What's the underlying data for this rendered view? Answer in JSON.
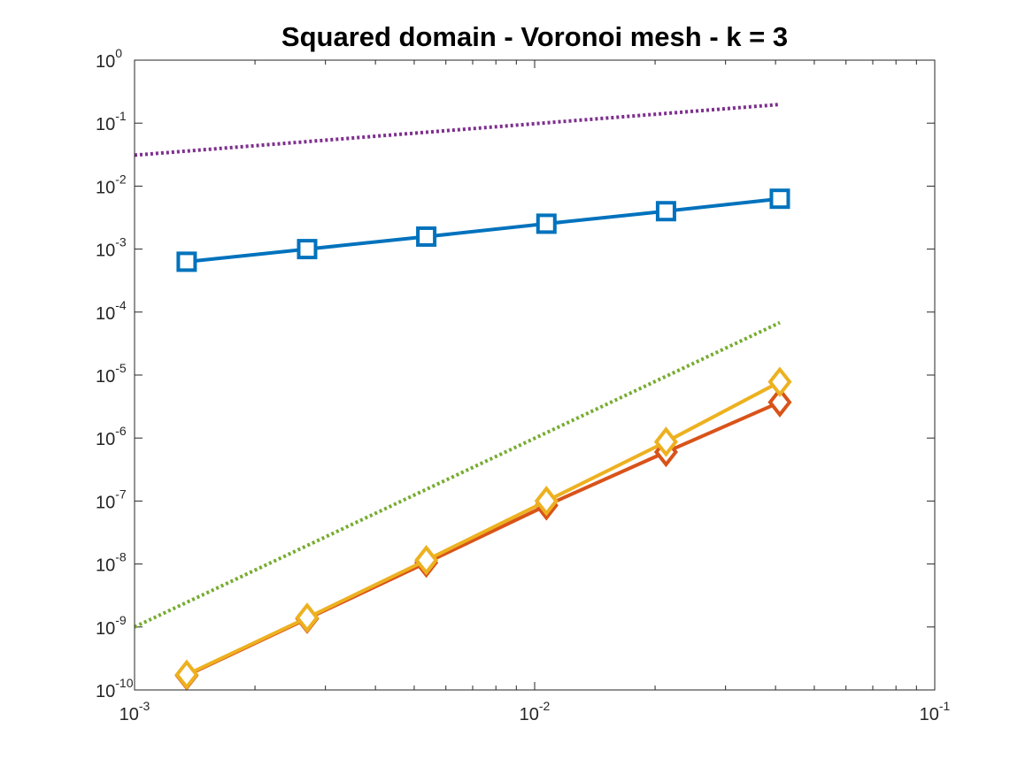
{
  "chart_data": {
    "type": "line",
    "title": "Squared domain - Voronoi mesh - k = 3",
    "xlabel": "",
    "ylabel": "",
    "xscale": "log",
    "yscale": "log",
    "xlim": [
      0.001,
      0.1
    ],
    "ylim": [
      1e-10,
      1
    ],
    "grid": false,
    "box": true,
    "x_ticks": [
      {
        "base": "10",
        "exp": "-3",
        "value": 0.001
      },
      {
        "base": "10",
        "exp": "-2",
        "value": 0.01
      },
      {
        "base": "10",
        "exp": "-1",
        "value": 0.1
      }
    ],
    "y_ticks": [
      {
        "base": "10",
        "exp": "0",
        "value": 1
      },
      {
        "base": "10",
        "exp": "-1",
        "value": 0.1
      },
      {
        "base": "10",
        "exp": "-2",
        "value": 0.01
      },
      {
        "base": "10",
        "exp": "-3",
        "value": 0.001
      },
      {
        "base": "10",
        "exp": "-4",
        "value": 0.0001
      },
      {
        "base": "10",
        "exp": "-5",
        "value": 1e-05
      },
      {
        "base": "10",
        "exp": "-6",
        "value": 1e-06
      },
      {
        "base": "10",
        "exp": "-7",
        "value": 1e-07
      },
      {
        "base": "10",
        "exp": "-8",
        "value": 1e-08
      },
      {
        "base": "10",
        "exp": "-9",
        "value": 1e-09
      },
      {
        "base": "10",
        "exp": "-10",
        "value": 1e-10
      }
    ],
    "series": [
      {
        "color": "#0072BD",
        "marker": "square",
        "line": "solid",
        "x": [
          0.00135,
          0.0027,
          0.00536,
          0.0107,
          0.0213,
          0.041
        ],
        "y": [
          0.00063,
          0.001,
          0.00158,
          0.00253,
          0.004,
          0.0063
        ]
      },
      {
        "color": "#D95319",
        "marker": "diamond",
        "line": "solid",
        "x": [
          0.00135,
          0.0027,
          0.00536,
          0.0107,
          0.0213,
          0.041
        ],
        "y": [
          1.7e-10,
          1.35e-09,
          1.05e-08,
          8.5e-08,
          6e-07,
          3.7e-06
        ]
      },
      {
        "color": "#EDB120",
        "marker": "diamond",
        "line": "solid",
        "x": [
          0.00135,
          0.0027,
          0.00536,
          0.0107,
          0.0213,
          0.041
        ],
        "y": [
          1.75e-10,
          1.4e-09,
          1.15e-08,
          1e-07,
          8.7e-07,
          7.8e-06
        ]
      },
      {
        "color": "#7E2F8E",
        "marker": "none",
        "line": "dotted",
        "x": [
          0.001,
          0.041
        ],
        "y": [
          0.031,
          0.198
        ]
      },
      {
        "color": "#77AC30",
        "marker": "none",
        "line": "dotted",
        "x": [
          0.001,
          0.041
        ],
        "y": [
          1e-09,
          6.8e-05
        ]
      }
    ]
  }
}
